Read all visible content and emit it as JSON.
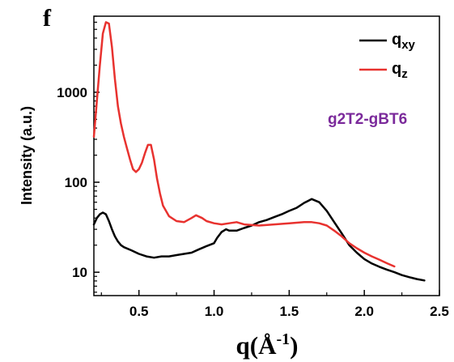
{
  "panel_label": "f",
  "chart_data": {
    "type": "line",
    "xlabel": {
      "main": "q(Å",
      "sup": "-1",
      "close": ")"
    },
    "ylabel": "Intensity (a.u.)",
    "yscale": "log",
    "xlim": [
      0.2,
      2.5
    ],
    "ylim": [
      5.5,
      7000
    ],
    "x_ticks": [
      0.5,
      1.0,
      1.5,
      2.0,
      2.5
    ],
    "x_tick_labels": [
      "0.5",
      "1.0",
      "1.5",
      "2.0",
      "2.5"
    ],
    "y_ticks": [
      10,
      100,
      1000
    ],
    "y_tick_labels": [
      "10",
      "100",
      "1000"
    ],
    "legend_position": "top-right",
    "annotation": {
      "text": "g2T2-gBT6",
      "color": "#7b2a9b"
    },
    "series": [
      {
        "name": "qxy",
        "legend_main": "q",
        "legend_sub": "xy",
        "color": "#000000",
        "x": [
          0.2,
          0.22,
          0.24,
          0.26,
          0.28,
          0.3,
          0.32,
          0.34,
          0.36,
          0.38,
          0.4,
          0.45,
          0.5,
          0.55,
          0.6,
          0.65,
          0.7,
          0.75,
          0.8,
          0.85,
          0.9,
          0.95,
          1.0,
          1.02,
          1.05,
          1.08,
          1.1,
          1.15,
          1.2,
          1.25,
          1.3,
          1.35,
          1.4,
          1.45,
          1.5,
          1.55,
          1.6,
          1.65,
          1.7,
          1.75,
          1.8,
          1.85,
          1.9,
          1.95,
          2.0,
          2.05,
          2.1,
          2.15,
          2.2,
          2.25,
          2.3,
          2.35,
          2.4
        ],
        "y": [
          34,
          40,
          44,
          46,
          44,
          37,
          30,
          25,
          22,
          20,
          19,
          17.5,
          16,
          15,
          14.5,
          15,
          15,
          15.5,
          16,
          16.5,
          18,
          19.5,
          21,
          24,
          28,
          30,
          29,
          29,
          31,
          33,
          36,
          38,
          41,
          44,
          48,
          52,
          59,
          65,
          60,
          48,
          36,
          27,
          20,
          16.5,
          14,
          12.5,
          11.5,
          10.7,
          10,
          9.3,
          8.8,
          8.4,
          8.1
        ]
      },
      {
        "name": "qz",
        "legend_main": "q",
        "legend_sub": "z",
        "color": "#e8322f",
        "x": [
          0.2,
          0.22,
          0.24,
          0.26,
          0.28,
          0.3,
          0.32,
          0.34,
          0.36,
          0.38,
          0.4,
          0.42,
          0.44,
          0.46,
          0.48,
          0.5,
          0.52,
          0.54,
          0.56,
          0.58,
          0.6,
          0.62,
          0.64,
          0.66,
          0.7,
          0.75,
          0.8,
          0.85,
          0.88,
          0.92,
          0.95,
          1.0,
          1.05,
          1.1,
          1.15,
          1.2,
          1.3,
          1.4,
          1.5,
          1.6,
          1.65,
          1.7,
          1.75,
          1.8,
          1.85,
          1.9,
          1.95,
          2.0,
          2.05,
          2.1,
          2.15,
          2.2
        ],
        "y": [
          320,
          800,
          2000,
          4500,
          6000,
          5800,
          3200,
          1400,
          700,
          450,
          320,
          240,
          180,
          140,
          130,
          140,
          165,
          210,
          260,
          260,
          180,
          110,
          75,
          55,
          42,
          37,
          36,
          40,
          43,
          40,
          37,
          35,
          34,
          35,
          36,
          34,
          33,
          34,
          35,
          36,
          36,
          35,
          33,
          29,
          25,
          21,
          18.5,
          16.5,
          15,
          13.8,
          12.6,
          11.6
        ]
      }
    ]
  }
}
